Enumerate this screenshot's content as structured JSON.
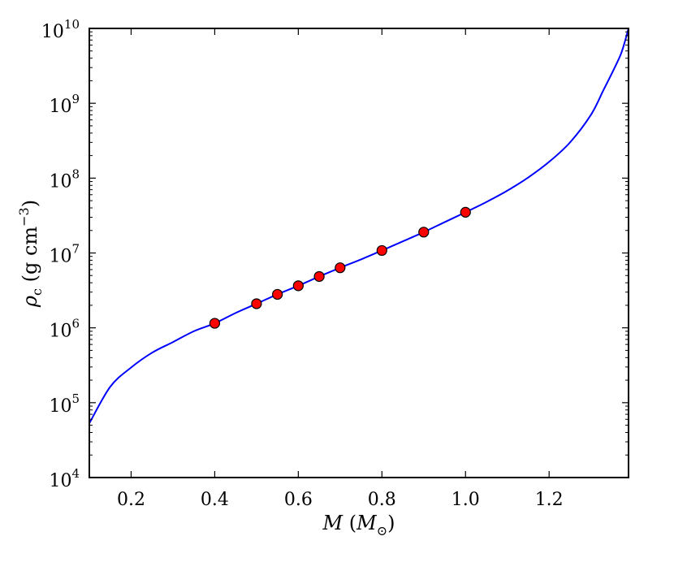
{
  "chart_data": {
    "type": "line",
    "title": "",
    "xlabel": {
      "main": "M",
      "open": " (",
      "inner": "M",
      "sub": "⊙",
      "close": ")"
    },
    "ylabel": {
      "rho": "ρ",
      "sub": "c",
      "unit": " (g cm",
      "sup": "−3",
      "close": ")"
    },
    "x_scale": "linear",
    "y_scale": "log",
    "xlim": [
      0.1,
      1.39
    ],
    "ylim": [
      10000,
      10000000000
    ],
    "x_ticks": [
      0.2,
      0.4,
      0.6,
      0.8,
      1.0,
      1.2
    ],
    "x_tick_labels": [
      "0.2",
      "0.4",
      "0.6",
      "0.8",
      "1.0",
      "1.2"
    ],
    "y_ticks": [
      {
        "value": 10000,
        "base": "10",
        "exp": "4"
      },
      {
        "value": 100000,
        "base": "10",
        "exp": "5"
      },
      {
        "value": 1000000,
        "base": "10",
        "exp": "6"
      },
      {
        "value": 10000000,
        "base": "10",
        "exp": "7"
      },
      {
        "value": 100000000,
        "base": "10",
        "exp": "8"
      },
      {
        "value": 1000000000,
        "base": "10",
        "exp": "9"
      },
      {
        "value": 10000000000,
        "base": "10",
        "exp": "10"
      }
    ],
    "grid": false,
    "legend": "none",
    "series": [
      {
        "kind": "line",
        "color": "#0000ff",
        "x": [
          0.1,
          0.15,
          0.2,
          0.25,
          0.3,
          0.35,
          0.4,
          0.45,
          0.5,
          0.55,
          0.6,
          0.65,
          0.7,
          0.75,
          0.8,
          0.85,
          0.9,
          0.95,
          1.0,
          1.05,
          1.1,
          1.15,
          1.2,
          1.25,
          1.3,
          1.33,
          1.35,
          1.37,
          1.38,
          1.39
        ],
        "y": [
          53000,
          163000,
          295000,
          465000,
          645000,
          900000,
          1150000,
          1580000,
          2100000,
          2800000,
          3650000,
          4850000,
          6350000,
          8200000,
          10800000,
          14300000,
          19000000,
          25800000,
          35000000,
          48000000,
          68000000,
          102000000,
          165000000,
          300000000,
          700000000,
          1500000000,
          2500000000,
          4300000000,
          6300000000,
          10000000000
        ]
      },
      {
        "kind": "scatter",
        "color": "#ff0000",
        "edge_color": "#000000",
        "x": [
          0.4,
          0.5,
          0.55,
          0.6,
          0.65,
          0.7,
          0.8,
          0.9,
          1.0
        ],
        "y": [
          1150000,
          2100000,
          2800000,
          3650000,
          4850000,
          6350000,
          10800000,
          19000000,
          35000000
        ]
      }
    ]
  }
}
